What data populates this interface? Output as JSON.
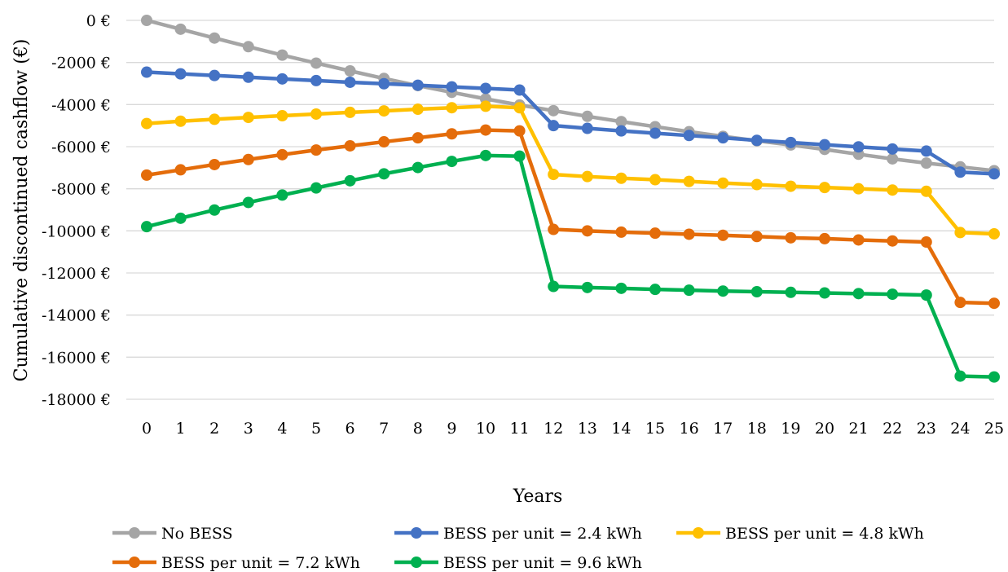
{
  "chart_data": {
    "type": "line",
    "xlabel": "Years",
    "ylabel": "Cumulative discontinued cashflow (€)",
    "x": [
      0,
      1,
      2,
      3,
      4,
      5,
      6,
      7,
      8,
      9,
      10,
      11,
      12,
      13,
      14,
      15,
      16,
      17,
      18,
      19,
      20,
      21,
      22,
      23,
      24,
      25
    ],
    "x_tick_labels": [
      "0",
      "1",
      "2",
      "3",
      "4",
      "5",
      "6",
      "7",
      "8",
      "9",
      "10",
      "11",
      "12",
      "13",
      "14",
      "15",
      "16",
      "17",
      "18",
      "19",
      "20",
      "21",
      "22",
      "23",
      "24",
      "25"
    ],
    "ylim": [
      -18000,
      0
    ],
    "y_ticks": [
      0,
      -2000,
      -4000,
      -6000,
      -8000,
      -10000,
      -12000,
      -14000,
      -16000,
      -18000
    ],
    "y_tick_labels": [
      "0 €",
      "-2000 €",
      "-4000 €",
      "-6000 €",
      "-8000 €",
      "-10000 €",
      "-12000 €",
      "-14000 €",
      "-16000 €",
      "-18000 €"
    ],
    "grid": "horizontal",
    "legend_position": "bottom",
    "series": [
      {
        "name": "No BESS",
        "color": "#a5a5a5",
        "values": [
          0,
          -420,
          -840,
          -1250,
          -1650,
          -2030,
          -2400,
          -2760,
          -3100,
          -3420,
          -3730,
          -4020,
          -4290,
          -4560,
          -4810,
          -5050,
          -5290,
          -5510,
          -5720,
          -5920,
          -6130,
          -6360,
          -6580,
          -6780,
          -6960,
          -7140
        ]
      },
      {
        "name": "BESS per unit = 2.4 kWh",
        "color": "#4472c4",
        "values": [
          -2460,
          -2540,
          -2620,
          -2700,
          -2780,
          -2860,
          -2940,
          -3010,
          -3080,
          -3160,
          -3230,
          -3310,
          -5000,
          -5130,
          -5250,
          -5360,
          -5470,
          -5580,
          -5700,
          -5800,
          -5910,
          -6010,
          -6110,
          -6210,
          -7210,
          -7290
        ]
      },
      {
        "name": "BESS per unit = 4.8 kWh",
        "color": "#ffc000",
        "values": [
          -4900,
          -4790,
          -4700,
          -4610,
          -4530,
          -4450,
          -4370,
          -4300,
          -4220,
          -4150,
          -4080,
          -4150,
          -7320,
          -7420,
          -7500,
          -7570,
          -7650,
          -7730,
          -7800,
          -7880,
          -7940,
          -8000,
          -8060,
          -8120,
          -10080,
          -10140
        ]
      },
      {
        "name": "BESS per unit = 7.2 kWh",
        "color": "#e46c0a",
        "values": [
          -7350,
          -7100,
          -6850,
          -6610,
          -6380,
          -6160,
          -5960,
          -5770,
          -5580,
          -5390,
          -5210,
          -5250,
          -9930,
          -10000,
          -10060,
          -10110,
          -10160,
          -10210,
          -10270,
          -10330,
          -10370,
          -10430,
          -10480,
          -10530,
          -13400,
          -13440
        ]
      },
      {
        "name": "BESS per unit = 9.6 kWh",
        "color": "#00b050",
        "values": [
          -9800,
          -9400,
          -9010,
          -8650,
          -8300,
          -7960,
          -7620,
          -7290,
          -6990,
          -6700,
          -6420,
          -6450,
          -12640,
          -12690,
          -12730,
          -12780,
          -12820,
          -12860,
          -12890,
          -12920,
          -12950,
          -12980,
          -13010,
          -13050,
          -16900,
          -16940
        ]
      }
    ]
  }
}
